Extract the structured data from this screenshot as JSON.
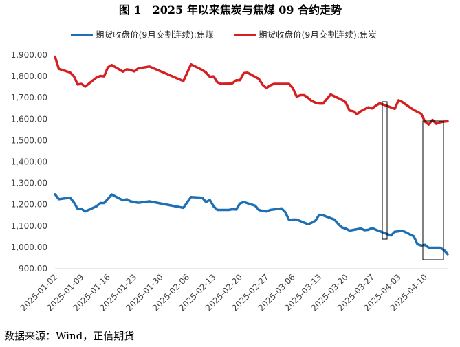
{
  "chart_data": {
    "type": "line",
    "title": "图 1　2025 年以来焦炭与焦煤 09 合约走势",
    "ylim": [
      900,
      1900
    ],
    "ytick_step": 100,
    "ytick_labels": [
      "900.00",
      "1,000.00",
      "1,100.00",
      "1,200.00",
      "1,300.00",
      "1,400.00",
      "1,500.00",
      "1,600.00",
      "1,700.00",
      "1,800.00",
      "1,900.00"
    ],
    "x_tick_labels": [
      "2025-01-02",
      "2025-01-09",
      "2025-01-16",
      "2025-01-23",
      "2025-01-30",
      "2025-02-06",
      "2025-02-13",
      "2025-02-20",
      "2025-02-27",
      "2025-03-06",
      "2025-03-13",
      "2025-03-20",
      "2025-03-27",
      "2025-04-03",
      "2025-04-10"
    ],
    "x_range_days": [
      0,
      104
    ],
    "legend_position": "top",
    "grid": false,
    "series": [
      {
        "name": "期货收盘价(9月交割连续):焦煤",
        "color": "#1f6fb5",
        "points": [
          [
            0,
            1248
          ],
          [
            1,
            1225
          ],
          [
            4,
            1232
          ],
          [
            5,
            1210
          ],
          [
            6,
            1180
          ],
          [
            7,
            1180
          ],
          [
            8,
            1168
          ],
          [
            11,
            1192
          ],
          [
            12,
            1207
          ],
          [
            13,
            1207
          ],
          [
            15,
            1247
          ],
          [
            18,
            1220
          ],
          [
            19,
            1225
          ],
          [
            20,
            1215
          ],
          [
            21,
            1212
          ],
          [
            22,
            1208
          ],
          [
            25,
            1215
          ],
          [
            34,
            1185
          ],
          [
            36,
            1235
          ],
          [
            39,
            1232
          ],
          [
            40,
            1212
          ],
          [
            41,
            1222
          ],
          [
            42,
            1192
          ],
          [
            43,
            1175
          ],
          [
            46,
            1175
          ],
          [
            47,
            1178
          ],
          [
            48,
            1177
          ],
          [
            49,
            1205
          ],
          [
            50,
            1212
          ],
          [
            53,
            1195
          ],
          [
            54,
            1175
          ],
          [
            55,
            1170
          ],
          [
            56,
            1168
          ],
          [
            57,
            1175
          ],
          [
            60,
            1182
          ],
          [
            61,
            1165
          ],
          [
            62,
            1128
          ],
          [
            63,
            1130
          ],
          [
            64,
            1130
          ],
          [
            67,
            1108
          ],
          [
            68,
            1115
          ],
          [
            69,
            1125
          ],
          [
            70,
            1152
          ],
          [
            71,
            1150
          ],
          [
            74,
            1130
          ],
          [
            75,
            1110
          ],
          [
            76,
            1093
          ],
          [
            77,
            1088
          ],
          [
            78,
            1078
          ],
          [
            81,
            1088
          ],
          [
            82,
            1080
          ],
          [
            83,
            1082
          ],
          [
            84,
            1090
          ],
          [
            85,
            1082
          ],
          [
            88,
            1062
          ],
          [
            89,
            1055
          ],
          [
            90,
            1073
          ],
          [
            91,
            1075
          ],
          [
            92,
            1078
          ],
          [
            95,
            1052
          ],
          [
            96,
            1015
          ],
          [
            97,
            1008
          ],
          [
            98,
            1012
          ],
          [
            99,
            998
          ],
          [
            102,
            998
          ],
          [
            103,
            988
          ],
          [
            104,
            968
          ]
        ]
      },
      {
        "name": "期货收盘价(9月交割连续):焦炭",
        "color": "#d42020",
        "points": [
          [
            0,
            1892
          ],
          [
            1,
            1835
          ],
          [
            4,
            1818
          ],
          [
            5,
            1800
          ],
          [
            6,
            1762
          ],
          [
            7,
            1765
          ],
          [
            8,
            1752
          ],
          [
            11,
            1795
          ],
          [
            12,
            1802
          ],
          [
            13,
            1800
          ],
          [
            14,
            1842
          ],
          [
            15,
            1853
          ],
          [
            18,
            1822
          ],
          [
            19,
            1833
          ],
          [
            20,
            1830
          ],
          [
            21,
            1823
          ],
          [
            22,
            1837
          ],
          [
            25,
            1846
          ],
          [
            34,
            1778
          ],
          [
            36,
            1856
          ],
          [
            39,
            1830
          ],
          [
            40,
            1818
          ],
          [
            41,
            1798
          ],
          [
            42,
            1800
          ],
          [
            43,
            1772
          ],
          [
            44,
            1765
          ],
          [
            46,
            1766
          ],
          [
            47,
            1768
          ],
          [
            48,
            1782
          ],
          [
            49,
            1782
          ],
          [
            50,
            1815
          ],
          [
            51,
            1817
          ],
          [
            54,
            1788
          ],
          [
            55,
            1760
          ],
          [
            56,
            1745
          ],
          [
            57,
            1758
          ],
          [
            58,
            1765
          ],
          [
            62,
            1765
          ],
          [
            63,
            1745
          ],
          [
            64,
            1705
          ],
          [
            65,
            1712
          ],
          [
            66,
            1712
          ],
          [
            67,
            1700
          ],
          [
            68,
            1685
          ],
          [
            69,
            1677
          ],
          [
            70,
            1673
          ],
          [
            71,
            1673
          ],
          [
            73,
            1715
          ],
          [
            76,
            1690
          ],
          [
            77,
            1678
          ],
          [
            78,
            1640
          ],
          [
            79,
            1637
          ],
          [
            80,
            1623
          ],
          [
            81,
            1637
          ],
          [
            83,
            1655
          ],
          [
            84,
            1650
          ],
          [
            85,
            1663
          ],
          [
            86,
            1674
          ],
          [
            89,
            1655
          ],
          [
            90,
            1648
          ],
          [
            91,
            1688
          ],
          [
            92,
            1680
          ],
          [
            95,
            1643
          ],
          [
            97,
            1625
          ],
          [
            98,
            1588
          ],
          [
            99,
            1575
          ],
          [
            100,
            1596
          ],
          [
            101,
            1578
          ],
          [
            102,
            1585
          ],
          [
            103,
            1588
          ],
          [
            104,
            1590
          ],
          [
            105,
            1590
          ],
          [
            106,
            1570
          ]
        ]
      }
    ]
  },
  "source_text": "数据来源：Wind，正信期货"
}
